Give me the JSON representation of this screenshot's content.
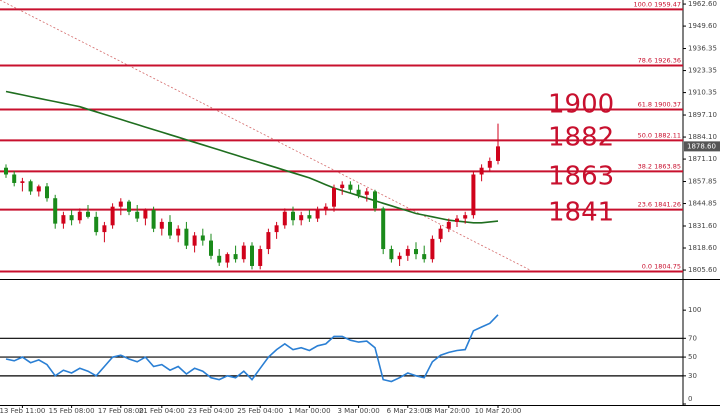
{
  "chart_data": {
    "type": "candlestick",
    "categories": [
      null,
      null,
      "13 Feb 11:00",
      null,
      null,
      null,
      null,
      null,
      "15 Feb 08:00",
      null,
      null,
      null,
      null,
      null,
      "17 Feb 08:00",
      null,
      null,
      null,
      null,
      "21 Feb 04:00",
      null,
      null,
      null,
      null,
      null,
      "23 Feb 04:00",
      null,
      null,
      null,
      null,
      null,
      "25 Feb 04:00",
      null,
      null,
      null,
      null,
      null,
      "1 Mar 00:00",
      null,
      null,
      null,
      null,
      null,
      "3 Mar 00:00",
      null,
      null,
      null,
      null,
      null,
      "6 Mar 23:00",
      null,
      null,
      null,
      null,
      "8 Mar 20:00",
      null,
      null,
      null,
      null,
      null,
      "10 Mar 20:00"
    ],
    "open": [
      1866,
      1862,
      1857,
      1858,
      1852,
      1855,
      1848,
      1833,
      1838,
      1835,
      1840,
      1837,
      1828,
      1832,
      1843,
      1846,
      1840,
      1836,
      1841,
      1830,
      1834,
      1826,
      1830,
      1820,
      1826,
      1823,
      1814,
      1810,
      1815,
      1812,
      1820,
      1808,
      1818,
      1828,
      1832,
      1840,
      1835,
      1838,
      1836,
      1841,
      1843,
      1854,
      1856,
      1853,
      1850,
      1852,
      1842,
      1818,
      1812,
      1814,
      1818,
      1815,
      1812,
      1824,
      1830,
      1834,
      1836,
      1838,
      1862,
      1866,
      1870
    ],
    "high": [
      1868,
      1864,
      1860,
      1859,
      1856,
      1857,
      1850,
      1840,
      1841,
      1842,
      1844,
      1840,
      1834,
      1845,
      1848,
      1847,
      1844,
      1842,
      1843,
      1836,
      1838,
      1832,
      1834,
      1828,
      1830,
      1827,
      1818,
      1816,
      1820,
      1822,
      1822,
      1820,
      1830,
      1834,
      1842,
      1843,
      1840,
      1841,
      1843,
      1845,
      1856,
      1858,
      1858,
      1856,
      1854,
      1853,
      1843,
      1820,
      1816,
      1820,
      1822,
      1820,
      1826,
      1832,
      1836,
      1838,
      1840,
      1864,
      1868,
      1872,
      1892
    ],
    "low": [
      1860,
      1855,
      1852,
      1850,
      1849,
      1846,
      1830,
      1830,
      1832,
      1833,
      1836,
      1826,
      1822,
      1830,
      1838,
      1838,
      1834,
      1832,
      1828,
      1826,
      1824,
      1822,
      1818,
      1816,
      1820,
      1812,
      1808,
      1807,
      1810,
      1810,
      1806,
      1806,
      1815,
      1824,
      1830,
      1832,
      1832,
      1834,
      1834,
      1838,
      1840,
      1850,
      1851,
      1848,
      1846,
      1840,
      1815,
      1810,
      1808,
      1811,
      1812,
      1810,
      1810,
      1822,
      1828,
      1831,
      1833,
      1836,
      1858,
      1864,
      1868
    ],
    "close": [
      1862,
      1857,
      1858,
      1852,
      1855,
      1848,
      1833,
      1838,
      1835,
      1840,
      1837,
      1828,
      1832,
      1843,
      1846,
      1840,
      1836,
      1841,
      1830,
      1834,
      1826,
      1830,
      1820,
      1826,
      1823,
      1814,
      1810,
      1815,
      1812,
      1820,
      1808,
      1818,
      1828,
      1832,
      1840,
      1835,
      1838,
      1836,
      1841,
      1843,
      1854,
      1856,
      1853,
      1850,
      1852,
      1842,
      1818,
      1812,
      1814,
      1818,
      1815,
      1812,
      1824,
      1830,
      1834,
      1836,
      1838,
      1862,
      1866,
      1870,
      1878.6
    ],
    "up_color": "#d0021b",
    "down_color": "#1a8a1a",
    "moving_average": {
      "color": "#1f6e1f",
      "values": [
        1911,
        1910,
        1909,
        1908,
        1907,
        1906,
        1905,
        1904,
        1903,
        1902,
        1900.5,
        1899,
        1897.5,
        1896,
        1894.5,
        1893,
        1891.5,
        1890,
        1888.5,
        1887,
        1885.5,
        1884,
        1882.5,
        1881,
        1879.5,
        1878,
        1876.5,
        1875,
        1873.5,
        1872,
        1870.5,
        1869,
        1867.5,
        1866,
        1864.5,
        1863,
        1861.5,
        1860,
        1858,
        1856,
        1854,
        1852.5,
        1851,
        1849.5,
        1848,
        1846.5,
        1845,
        1843.5,
        1842,
        1840.5,
        1839,
        1838,
        1837,
        1836,
        1835,
        1834.5,
        1834,
        1833.5,
        1833.5,
        1834,
        1834.5
      ]
    },
    "ylim": [
      1800.9,
      1965.0
    ],
    "yticks": [
      {
        "value": 1962.6,
        "label": "1962.60"
      },
      {
        "value": 1949.6,
        "label": "1949.60"
      },
      {
        "value": 1936.35,
        "label": "1936.35"
      },
      {
        "value": 1923.35,
        "label": "1923.35"
      },
      {
        "value": 1910.35,
        "label": "1910.35"
      },
      {
        "value": 1897.1,
        "label": "1897.10"
      },
      {
        "value": 1884.1,
        "label": "1884.10"
      },
      {
        "value": 1871.1,
        "label": "1871.10"
      },
      {
        "value": 1857.85,
        "label": "1857.85"
      },
      {
        "value": 1844.85,
        "label": "1844.85"
      },
      {
        "value": 1831.6,
        "label": "1831.60"
      },
      {
        "value": 1818.6,
        "label": "1818.60"
      },
      {
        "value": 1805.6,
        "label": "1805.60"
      }
    ],
    "current_price": {
      "value": 1878.6,
      "label": "1878.60"
    },
    "fib_color": "#c8102e",
    "fib_levels": [
      {
        "value": 1959.47,
        "label": "100.0 1959.47"
      },
      {
        "value": 1926.36,
        "label": "78.6 1926.36"
      },
      {
        "value": 1900.37,
        "label": "61.8 1900.37"
      },
      {
        "value": 1882.11,
        "label": "50.0 1882.11"
      },
      {
        "value": 1863.85,
        "label": "38.2 1863.85"
      },
      {
        "value": 1841.26,
        "label": "23.6 1841.26"
      },
      {
        "value": 1804.75,
        "label": "0.0 1804.75"
      }
    ],
    "annotations": [
      "1900",
      "1882",
      "1863",
      "1841"
    ],
    "indicator": {
      "color": "#2a7fd4",
      "values": [
        48,
        46,
        50,
        44,
        47,
        42,
        30,
        36,
        33,
        38,
        35,
        30,
        40,
        50,
        52,
        48,
        45,
        50,
        40,
        42,
        36,
        40,
        32,
        38,
        35,
        28,
        26,
        30,
        28,
        35,
        26,
        38,
        50,
        58,
        64,
        58,
        60,
        57,
        62,
        64,
        72,
        72,
        68,
        66,
        67,
        60,
        26,
        24,
        28,
        33,
        30,
        28,
        45,
        52,
        55,
        57,
        58,
        78,
        82,
        86,
        95
      ],
      "ylim": [
        0,
        130
      ],
      "yticks": [
        100,
        70,
        50,
        30,
        0
      ],
      "levels": [
        70,
        50,
        30
      ]
    }
  }
}
